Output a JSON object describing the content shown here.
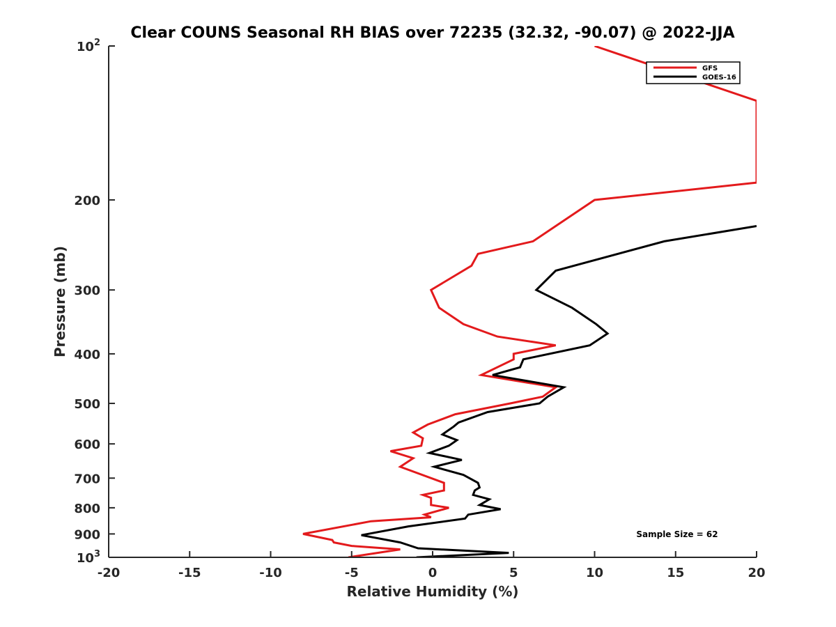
{
  "chart_data": {
    "type": "line",
    "title": "Clear COUNS Seasonal RH BIAS over 72235 (32.32, -90.07) @ 2022-JJA",
    "xlabel": "Relative Humidity (%)",
    "ylabel": "Pressure (mb)",
    "xlim": [
      -20,
      20
    ],
    "ylim": [
      100,
      1000
    ],
    "y_scale": "log",
    "y_reversed": true,
    "x_ticks": [
      -20,
      -15,
      -10,
      -5,
      0,
      5,
      10,
      15,
      20
    ],
    "x_tick_labels": [
      "-20",
      "-15",
      "-10",
      "-5",
      "0",
      "5",
      "10",
      "15",
      "20"
    ],
    "y_ticks": [
      100,
      200,
      300,
      400,
      500,
      600,
      700,
      800,
      900,
      1000
    ],
    "y_tick_labels": [
      "",
      "200",
      "300",
      "400",
      "500",
      "600",
      "700",
      "800",
      "900",
      ""
    ],
    "y_tick_exp_labels": [
      {
        "value": 100,
        "base": "10",
        "exp": "2"
      },
      {
        "value": 1000,
        "base": "10",
        "exp": "3"
      }
    ],
    "legend": {
      "position": "top-right",
      "entries": [
        "GFS",
        "GOES-16"
      ]
    },
    "annotation": "Sample Size = 62",
    "series": [
      {
        "name": "GFS",
        "color": "#e31a1c",
        "points": [
          [
            10,
            100
          ],
          [
            20,
            128
          ],
          [
            20,
            185
          ],
          [
            10,
            200
          ],
          [
            6.2,
            241
          ],
          [
            2.8,
            255
          ],
          [
            2.4,
            269
          ],
          [
            -0.1,
            300
          ],
          [
            0.4,
            325
          ],
          [
            1.9,
            350
          ],
          [
            4.0,
            370
          ],
          [
            7.6,
            385
          ],
          [
            5.0,
            400
          ],
          [
            5.0,
            410
          ],
          [
            3.0,
            440
          ],
          [
            7.6,
            465
          ],
          [
            6.8,
            485
          ],
          [
            4.8,
            500
          ],
          [
            1.4,
            525
          ],
          [
            -0.3,
            550
          ],
          [
            -1.2,
            570
          ],
          [
            -0.6,
            585
          ],
          [
            -0.7,
            605
          ],
          [
            -2.6,
            620
          ],
          [
            -1.2,
            640
          ],
          [
            -2.0,
            665
          ],
          [
            0.7,
            715
          ],
          [
            0.7,
            740
          ],
          [
            -0.6,
            755
          ],
          [
            -0.1,
            765
          ],
          [
            -0.1,
            790
          ],
          [
            1.0,
            800
          ],
          [
            -0.5,
            825
          ],
          [
            -0.1,
            835
          ],
          [
            -3.8,
            850
          ],
          [
            -8.0,
            900
          ],
          [
            -6.2,
            925
          ],
          [
            -6.1,
            935
          ],
          [
            -5.0,
            950
          ],
          [
            -2.0,
            965
          ],
          [
            -5.2,
            1000
          ]
        ]
      },
      {
        "name": "GOES-16",
        "color": "#000000",
        "points": [
          [
            20,
            225
          ],
          [
            14.3,
            241
          ],
          [
            7.6,
            275
          ],
          [
            6.4,
            300
          ],
          [
            8.6,
            325
          ],
          [
            10.1,
            350
          ],
          [
            10.8,
            365
          ],
          [
            9.7,
            385
          ],
          [
            5.6,
            410
          ],
          [
            5.4,
            425
          ],
          [
            3.7,
            440
          ],
          [
            8.1,
            465
          ],
          [
            7.1,
            485
          ],
          [
            6.6,
            500
          ],
          [
            3.4,
            520
          ],
          [
            1.6,
            545
          ],
          [
            1.3,
            555
          ],
          [
            0.6,
            575
          ],
          [
            1.5,
            590
          ],
          [
            1.0,
            605
          ],
          [
            -0.2,
            625
          ],
          [
            1.8,
            645
          ],
          [
            0.1,
            665
          ],
          [
            1.9,
            690
          ],
          [
            2.8,
            715
          ],
          [
            2.9,
            730
          ],
          [
            2.6,
            740
          ],
          [
            2.5,
            755
          ],
          [
            3.5,
            770
          ],
          [
            2.9,
            790
          ],
          [
            4.2,
            805
          ],
          [
            2.2,
            825
          ],
          [
            2.0,
            840
          ],
          [
            -1.5,
            870
          ],
          [
            -4.4,
            905
          ],
          [
            -2.0,
            935
          ],
          [
            -0.9,
            960
          ],
          [
            4.7,
            980
          ],
          [
            -1.0,
            1000
          ]
        ]
      }
    ]
  }
}
